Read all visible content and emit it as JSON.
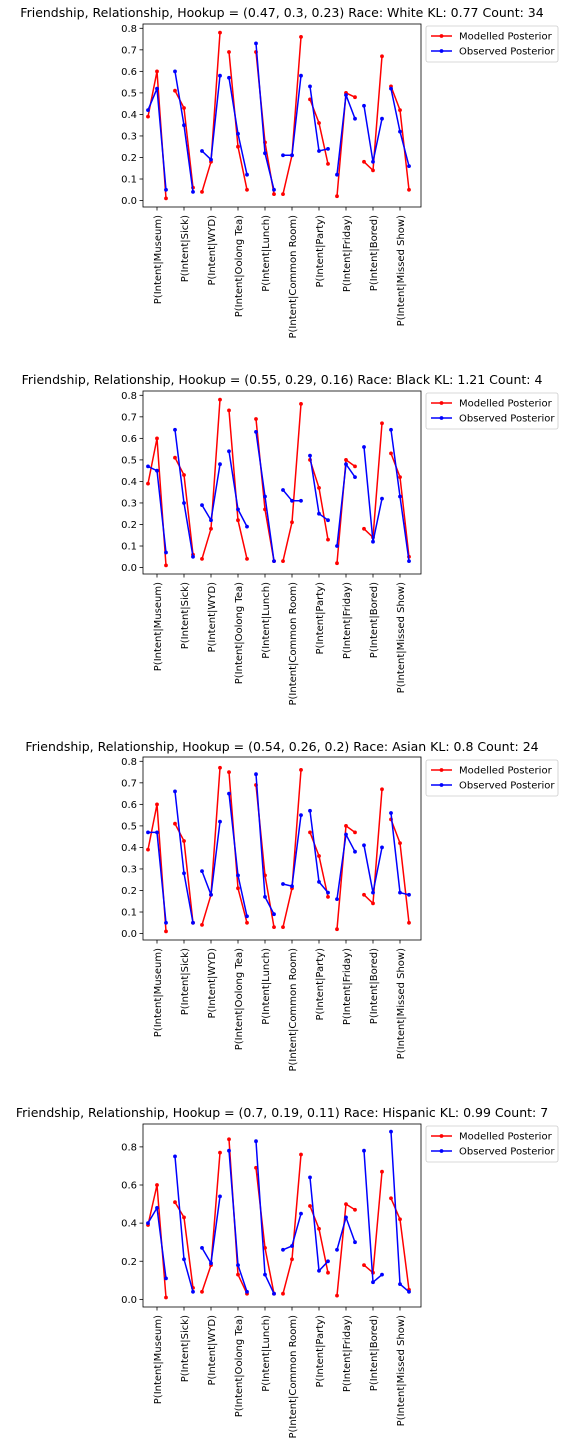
{
  "legend": {
    "modelled_label": "Modelled Posterior",
    "observed_label": "Observed Posterior"
  },
  "colors": {
    "modelled": "#ff0000",
    "observed": "#0000ff",
    "frame": "#000000"
  },
  "chart_data": [
    {
      "type": "line",
      "title": "Friendship, Relationship, Hookup = (0.47, 0.3, 0.23)     Race: White   KL: 0.77   Count: 34",
      "categories": [
        "P(Intent|Museum)",
        "P(Intent|Sick)",
        "P(Intent|WYD)",
        "P(Intent|Oolong Tea)",
        "P(Intent|Lunch)",
        "P(Intent|Common Room)",
        "P(Intent|Party)",
        "P(Intent|Friday)",
        "P(Intent|Bored)",
        "P(Intent|Missed Show)"
      ],
      "yticks": [
        0.0,
        0.1,
        0.2,
        0.3,
        0.4,
        0.5,
        0.6,
        0.7,
        0.8
      ],
      "ylim": [
        -0.03,
        0.82
      ],
      "legend_position": "outside-top-right",
      "grid": false,
      "series": [
        {
          "name": "Modelled Posterior",
          "color": "#ff0000",
          "values": [
            [
              0.39,
              0.6,
              0.01
            ],
            [
              0.51,
              0.43,
              0.06
            ],
            [
              0.04,
              0.18,
              0.78
            ],
            [
              0.69,
              0.25,
              0.05
            ],
            [
              0.69,
              0.27,
              0.03
            ],
            [
              0.03,
              0.21,
              0.76
            ],
            [
              0.47,
              0.36,
              0.17
            ],
            [
              0.02,
              0.5,
              0.48
            ],
            [
              0.18,
              0.14,
              0.67
            ],
            [
              0.53,
              0.42,
              0.05
            ]
          ]
        },
        {
          "name": "Observed Posterior",
          "color": "#0000ff",
          "values": [
            [
              0.42,
              0.52,
              0.05
            ],
            [
              0.6,
              0.35,
              0.04
            ],
            [
              0.23,
              0.19,
              0.58
            ],
            [
              0.57,
              0.31,
              0.12
            ],
            [
              0.73,
              0.22,
              0.05
            ],
            [
              0.21,
              0.21,
              0.58
            ],
            [
              0.53,
              0.23,
              0.24
            ],
            [
              0.12,
              0.49,
              0.38
            ],
            [
              0.44,
              0.18,
              0.38
            ],
            [
              0.52,
              0.32,
              0.16
            ]
          ]
        }
      ]
    },
    {
      "type": "line",
      "title": "Friendship, Relationship, Hookup = (0.55, 0.29, 0.16)     Race: Black   KL: 1.21   Count: 4",
      "categories": [
        "P(Intent|Museum)",
        "P(Intent|Sick)",
        "P(Intent|WYD)",
        "P(Intent|Oolong Tea)",
        "P(Intent|Lunch)",
        "P(Intent|Common Room)",
        "P(Intent|Party)",
        "P(Intent|Friday)",
        "P(Intent|Bored)",
        "P(Intent|Missed Show)"
      ],
      "yticks": [
        0.0,
        0.1,
        0.2,
        0.3,
        0.4,
        0.5,
        0.6,
        0.7,
        0.8
      ],
      "ylim": [
        -0.03,
        0.82
      ],
      "legend_position": "outside-top-right",
      "grid": false,
      "series": [
        {
          "name": "Modelled Posterior",
          "color": "#ff0000",
          "values": [
            [
              0.39,
              0.6,
              0.01
            ],
            [
              0.51,
              0.43,
              0.06
            ],
            [
              0.04,
              0.18,
              0.78
            ],
            [
              0.73,
              0.22,
              0.04
            ],
            [
              0.69,
              0.27,
              0.03
            ],
            [
              0.03,
              0.21,
              0.76
            ],
            [
              0.5,
              0.37,
              0.13
            ],
            [
              0.02,
              0.5,
              0.47
            ],
            [
              0.18,
              0.14,
              0.67
            ],
            [
              0.53,
              0.42,
              0.05
            ]
          ]
        },
        {
          "name": "Observed Posterior",
          "color": "#0000ff",
          "values": [
            [
              0.47,
              0.45,
              0.07
            ],
            [
              0.64,
              0.3,
              0.05
            ],
            [
              0.29,
              0.22,
              0.48
            ],
            [
              0.54,
              0.27,
              0.19
            ],
            [
              0.63,
              0.33,
              0.03
            ],
            [
              0.36,
              0.31,
              0.31
            ],
            [
              0.52,
              0.25,
              0.22
            ],
            [
              0.1,
              0.48,
              0.42
            ],
            [
              0.56,
              0.12,
              0.32
            ],
            [
              0.64,
              0.33,
              0.03
            ]
          ]
        }
      ]
    },
    {
      "type": "line",
      "title": "Friendship, Relationship, Hookup = (0.54, 0.26, 0.2)     Race: Asian   KL: 0.8   Count: 24",
      "categories": [
        "P(Intent|Museum)",
        "P(Intent|Sick)",
        "P(Intent|WYD)",
        "P(Intent|Oolong Tea)",
        "P(Intent|Lunch)",
        "P(Intent|Common Room)",
        "P(Intent|Party)",
        "P(Intent|Friday)",
        "P(Intent|Bored)",
        "P(Intent|Missed Show)"
      ],
      "yticks": [
        0.0,
        0.1,
        0.2,
        0.3,
        0.4,
        0.5,
        0.6,
        0.7,
        0.8
      ],
      "ylim": [
        -0.03,
        0.82
      ],
      "legend_position": "outside-top-right",
      "grid": false,
      "series": [
        {
          "name": "Modelled Posterior",
          "color": "#ff0000",
          "values": [
            [
              0.39,
              0.6,
              0.01
            ],
            [
              0.51,
              0.43,
              0.05
            ],
            [
              0.04,
              0.18,
              0.77
            ],
            [
              0.75,
              0.21,
              0.05
            ],
            [
              0.69,
              0.27,
              0.03
            ],
            [
              0.03,
              0.21,
              0.76
            ],
            [
              0.47,
              0.36,
              0.17
            ],
            [
              0.02,
              0.5,
              0.47
            ],
            [
              0.18,
              0.14,
              0.67
            ],
            [
              0.53,
              0.42,
              0.05
            ]
          ]
        },
        {
          "name": "Observed Posterior",
          "color": "#0000ff",
          "values": [
            [
              0.47,
              0.47,
              0.05
            ],
            [
              0.66,
              0.28,
              0.05
            ],
            [
              0.29,
              0.18,
              0.52
            ],
            [
              0.65,
              0.27,
              0.08
            ],
            [
              0.74,
              0.17,
              0.09
            ],
            [
              0.23,
              0.22,
              0.55
            ],
            [
              0.57,
              0.24,
              0.19
            ],
            [
              0.16,
              0.46,
              0.38
            ],
            [
              0.41,
              0.19,
              0.4
            ],
            [
              0.56,
              0.19,
              0.18
            ]
          ]
        }
      ]
    },
    {
      "type": "line",
      "title": "Friendship, Relationship, Hookup = (0.7, 0.19, 0.11)     Race: Hispanic   KL: 0.99   Count: 7",
      "categories": [
        "P(Intent|Museum)",
        "P(Intent|Sick)",
        "P(Intent|WYD)",
        "P(Intent|Oolong Tea)",
        "P(Intent|Lunch)",
        "P(Intent|Common Room)",
        "P(Intent|Party)",
        "P(Intent|Friday)",
        "P(Intent|Bored)",
        "P(Intent|Missed Show)"
      ],
      "yticks": [
        0.0,
        0.2,
        0.4,
        0.6,
        0.8
      ],
      "ylim": [
        -0.04,
        0.92
      ],
      "legend_position": "outside-top-right",
      "grid": false,
      "series": [
        {
          "name": "Modelled Posterior",
          "color": "#ff0000",
          "values": [
            [
              0.39,
              0.6,
              0.01
            ],
            [
              0.51,
              0.43,
              0.06
            ],
            [
              0.04,
              0.18,
              0.77
            ],
            [
              0.84,
              0.13,
              0.03
            ],
            [
              0.69,
              0.27,
              0.03
            ],
            [
              0.03,
              0.21,
              0.76
            ],
            [
              0.49,
              0.37,
              0.14
            ],
            [
              0.02,
              0.5,
              0.47
            ],
            [
              0.18,
              0.14,
              0.67
            ],
            [
              0.53,
              0.42,
              0.05
            ]
          ]
        },
        {
          "name": "Observed Posterior",
          "color": "#0000ff",
          "values": [
            [
              0.4,
              0.48,
              0.11
            ],
            [
              0.75,
              0.21,
              0.04
            ],
            [
              0.27,
              0.19,
              0.54
            ],
            [
              0.78,
              0.18,
              0.04
            ],
            [
              0.83,
              0.13,
              0.03
            ],
            [
              0.26,
              0.28,
              0.45
            ],
            [
              0.64,
              0.15,
              0.2
            ],
            [
              0.26,
              0.43,
              0.3
            ],
            [
              0.78,
              0.09,
              0.13
            ],
            [
              0.88,
              0.08,
              0.04
            ]
          ]
        }
      ]
    }
  ]
}
